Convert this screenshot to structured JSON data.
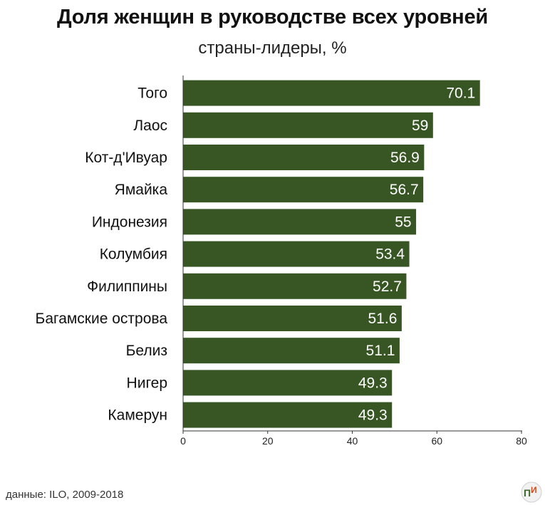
{
  "chart_data": {
    "type": "bar",
    "orientation": "horizontal",
    "title": "Доля женщин в руководстве всех уровней",
    "subtitle": "страны-лидеры, %",
    "categories": [
      "Того",
      "Лаос",
      "Кот-д'Ивуар",
      "Ямайка",
      "Индонезия",
      "Колумбия",
      "Филиппины",
      "Багамские острова",
      "Белиз",
      "Нигер",
      "Камерун"
    ],
    "values": [
      70.1,
      59,
      56.9,
      56.7,
      55,
      53.4,
      52.7,
      51.6,
      51.1,
      49.3,
      49.3
    ],
    "value_labels": [
      "70.1",
      "59",
      "56.9",
      "56.7",
      "55",
      "53.4",
      "52.7",
      "51.6",
      "51.1",
      "49.3",
      "49.3"
    ],
    "xlim": [
      0,
      80
    ],
    "xticks": [
      "0",
      "20",
      "40",
      "60",
      "80"
    ],
    "bar_color": "#375623",
    "grid": false
  },
  "footer": {
    "source": "данные: ILO, 2009-2018",
    "logo_letters": "ПИ"
  }
}
